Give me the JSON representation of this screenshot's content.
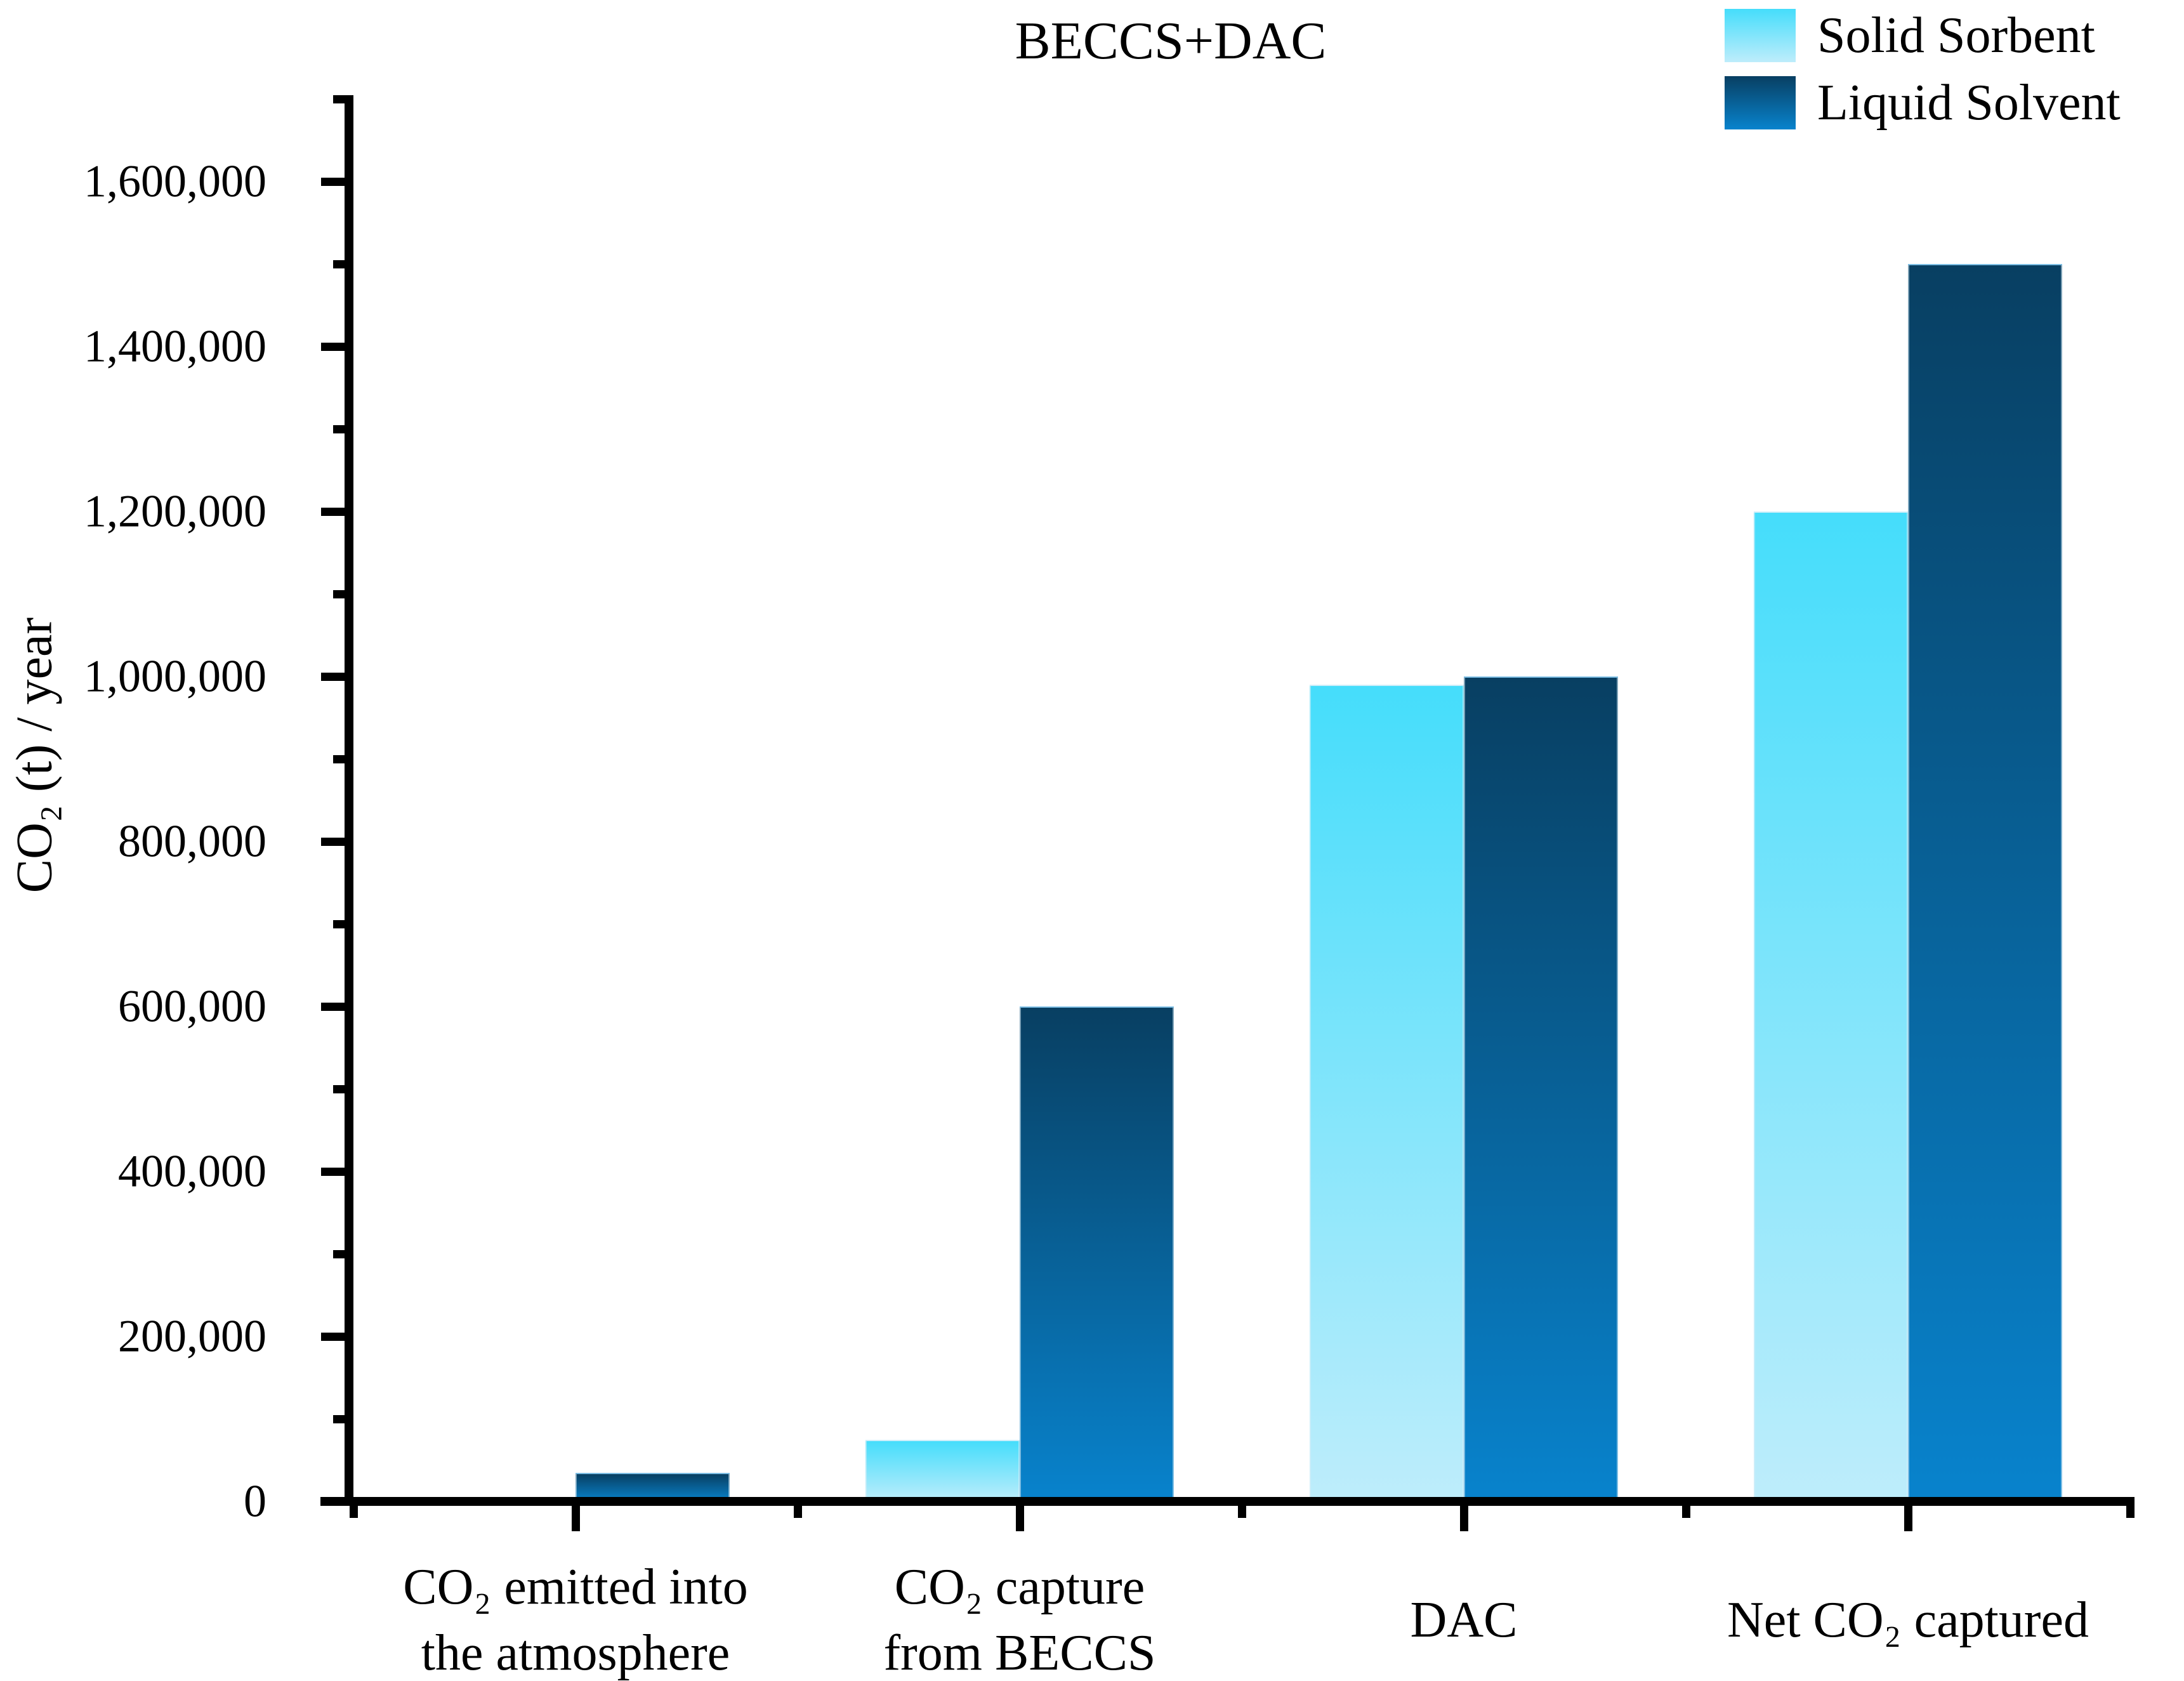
{
  "title": "BECCS+DAC",
  "y_axis": {
    "label": "CO₂ (t) / year",
    "tick_labels": [
      "0",
      "200,000",
      "400,000",
      "600,000",
      "800,000",
      "1,000,000",
      "1,200,000",
      "1,400,000",
      "1,600,000"
    ]
  },
  "x_axis": {
    "categories": [
      "CO₂ emitted into\nthe atmosphere",
      "CO₂ capture\nfrom BECCS",
      "DAC",
      "Net CO₂ captured"
    ]
  },
  "legend": {
    "items": [
      {
        "label": "Solid Sorbent",
        "color_top": "#45DDFB",
        "color_bottom": "#BEEDFB"
      },
      {
        "label": "Liquid Solvent",
        "color_top": "#083F62",
        "color_bottom": "#0883CD"
      }
    ]
  },
  "chart_data": {
    "type": "bar",
    "title": "BECCS+DAC",
    "categories": [
      "CO₂ emitted into the atmosphere",
      "CO₂ capture from BECCS",
      "DAC",
      "Net CO₂ captured"
    ],
    "series": [
      {
        "name": "Solid Sorbent",
        "values": [
          0,
          75000,
          990000,
          1200000
        ]
      },
      {
        "name": "Liquid Solvent",
        "values": [
          35000,
          600000,
          1000000,
          1500000
        ]
      }
    ],
    "xlabel": "",
    "ylabel": "CO₂ (t) / year",
    "ylim": [
      0,
      1700000
    ],
    "ytick_major_interval": 200000,
    "ytick_minor_interval": 100000,
    "grid": false,
    "legend_position": "top-right",
    "axis_color": "#000000",
    "bar_gradients": {
      "Solid Sorbent": [
        "#45DDFB",
        "#BEEDFB"
      ],
      "Liquid Solvent": [
        "#083F62",
        "#0883CD"
      ]
    }
  }
}
